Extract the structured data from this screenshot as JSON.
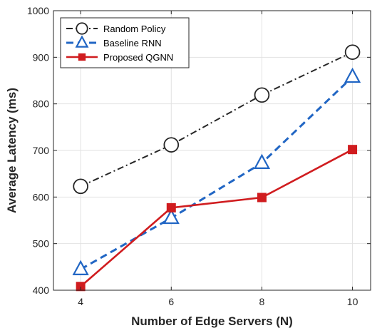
{
  "chart_data": {
    "type": "line",
    "title": "",
    "xlabel": "Number of Edge Servers (N)",
    "ylabel": "Average Latency (ms)",
    "x": [
      4,
      6,
      8,
      10
    ],
    "xticks": [
      4,
      6,
      8,
      10
    ],
    "xlim": [
      3.4,
      10.4
    ],
    "yticks": [
      400,
      500,
      600,
      700,
      800,
      900,
      1000
    ],
    "ylim": [
      400,
      1000
    ],
    "grid": true,
    "legend_position": "top-left",
    "series": [
      {
        "name": "Random Policy",
        "values": [
          623,
          712,
          819,
          911
        ],
        "color": "#262626",
        "line_style": "dash-dot",
        "marker": "circle"
      },
      {
        "name": "Baseline RNN",
        "values": [
          445,
          555,
          673,
          858
        ],
        "color": "#2166c4",
        "line_style": "dashed",
        "marker": "triangle"
      },
      {
        "name": "Proposed QGNN",
        "values": [
          408,
          577,
          599,
          702
        ],
        "color": "#d01c1f",
        "line_style": "solid",
        "marker": "square"
      }
    ]
  }
}
